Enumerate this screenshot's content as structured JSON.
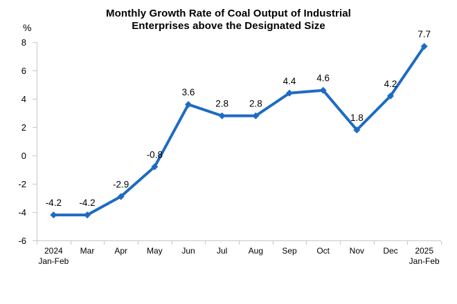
{
  "chart_data": {
    "type": "line",
    "title": "Monthly Growth Rate of Coal Output of Industrial Enterprises above the Designated Size",
    "title_lines": [
      "Monthly Growth Rate of Coal Output of Industrial",
      "Enterprises above the Designated Size"
    ],
    "unit_label": "%",
    "categories": [
      "2024\nJan-Feb",
      "Mar",
      "Apr",
      "May",
      "Jun",
      "Jul",
      "Aug",
      "Sep",
      "Oct",
      "Nov",
      "Dec",
      "2025\nJan-Feb"
    ],
    "values": [
      -4.2,
      -4.2,
      -2.9,
      -0.8,
      3.6,
      2.8,
      2.8,
      4.4,
      4.6,
      1.8,
      4.2,
      7.7
    ],
    "data_labels": [
      "-4.2",
      "-4.2",
      "-2.9",
      "-0.8",
      "3.6",
      "2.8",
      "2.8",
      "4.4",
      "4.6",
      "1.8",
      "4.2",
      "7.7"
    ],
    "ylim": [
      -6,
      8
    ],
    "ytick_step": 2,
    "ytick_labels": [
      "8",
      "6",
      "4",
      "2",
      "0",
      "-2",
      "-4",
      "-6"
    ],
    "grid": false,
    "legend": "none",
    "marker": "diamond",
    "colors": {
      "line": "#1E6BC4",
      "marker": "#1E6BC4",
      "axis": "#C6C6C6",
      "text": "#000000",
      "background": "#FFFFFF"
    }
  }
}
